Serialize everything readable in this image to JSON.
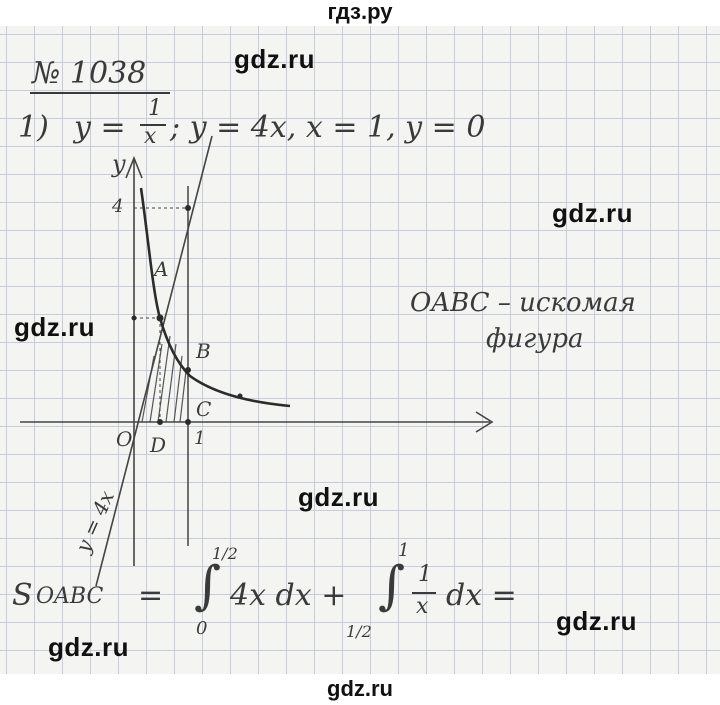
{
  "header": {
    "site": "гдз.ру"
  },
  "footer": {
    "site": "gdz.ru"
  },
  "watermarks": [
    "gdz.ru",
    "gdz.ru",
    "gdz.ru",
    "gdz.ru",
    "gdz.ru",
    "gdz.ru"
  ],
  "problem": {
    "number": "№ 1038",
    "part": "1)",
    "condition_parts": [
      "y =",
      "1",
      "x",
      "; y = 4x,  x = 1,  y = 0"
    ]
  },
  "graph": {
    "axis_y": "y",
    "tick_y": "4",
    "point_labels": [
      "A",
      "B",
      "C",
      "O",
      "D",
      "1"
    ],
    "line_label": "y = 4x"
  },
  "note": {
    "line1": "OABC – искомая",
    "line2": "фигура"
  },
  "formula": {
    "lhs": "S",
    "subscript": "OABC",
    "eq": "=",
    "integral1_upper": "1/2",
    "integral1_lower": "0",
    "integrand1": "4x dx +",
    "integral2_upper": "1",
    "integral2_lower": "1/2",
    "integrand2_num": "1",
    "integrand2_den": "x",
    "integrand2_tail": "dx ="
  }
}
